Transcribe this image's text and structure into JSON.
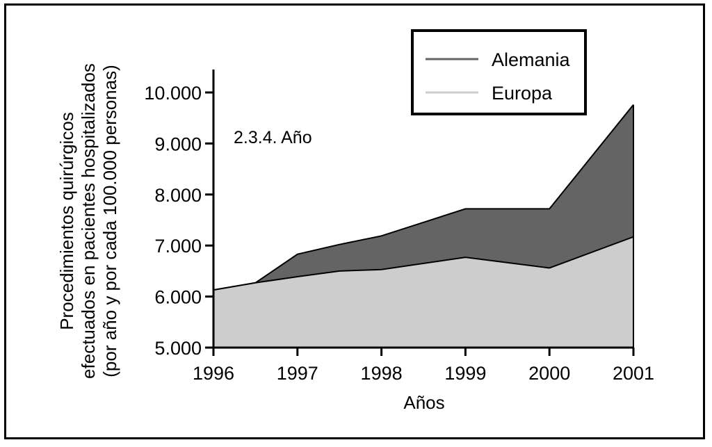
{
  "chart_data": {
    "type": "area",
    "title": "",
    "annotation": "2.3.4. Año",
    "xlabel": "Años",
    "ylabel_lines": [
      "Procedimientos quirúrgicos",
      "efectuados en pacientes hospitalizados",
      "(por año y por cada 100.000 personas)"
    ],
    "xlim": [
      1996,
      2001
    ],
    "ylim": [
      5000,
      10000
    ],
    "x_ticks": [
      1996,
      1997,
      1998,
      1999,
      2000,
      2001
    ],
    "x_tick_labels": [
      "1996",
      "1997",
      "1998",
      "1999",
      "2000",
      "2001"
    ],
    "y_ticks": [
      5000,
      6000,
      7000,
      8000,
      9000,
      10000
    ],
    "y_tick_labels": [
      "5.000",
      "6.000",
      "7.000",
      "8.000",
      "9.000",
      "10.000"
    ],
    "legend_position": "top-right",
    "series": [
      {
        "name": "Alemania",
        "color": "#646464",
        "x": [
          1996,
          1996.5,
          1997,
          1997.5,
          1998,
          1999,
          2000,
          2001
        ],
        "values": [
          6130,
          6270,
          6830,
          7020,
          7190,
          7720,
          7720,
          9760
        ]
      },
      {
        "name": "Europa",
        "color": "#cdcdcd",
        "x": [
          1996,
          1996.5,
          1997,
          1997.5,
          1998,
          1999,
          2000,
          2001
        ],
        "values": [
          6130,
          6270,
          6390,
          6500,
          6530,
          6770,
          6560,
          7170
        ]
      }
    ]
  }
}
